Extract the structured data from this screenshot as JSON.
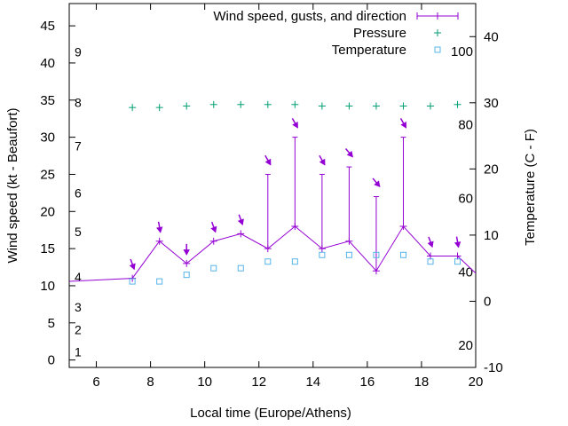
{
  "chart_data": {
    "type": "line",
    "title": "",
    "xlabel": "Local time (Europe/Athens)",
    "ylabel": "Wind speed (kt - Beaufort)",
    "y2label": "Temperature (C - F)",
    "xlim": [
      5,
      20
    ],
    "ylim": [
      -1,
      48
    ],
    "y2lim": [
      -10,
      45
    ],
    "x_ticks": [
      6,
      8,
      10,
      12,
      14,
      16,
      18,
      20
    ],
    "y_ticks": [
      0,
      5,
      10,
      15,
      20,
      25,
      30,
      35,
      40,
      45
    ],
    "y2_ticks": [
      -10,
      0,
      10,
      20,
      30,
      40
    ],
    "legend": {
      "position": "top-right",
      "entries": [
        "Wind speed, gusts, and direction",
        "Pressure",
        "Temperature"
      ]
    },
    "beaufort_scale": {
      "labels": [
        "1",
        "2",
        "3",
        "4",
        "5",
        "6",
        "7",
        "8",
        "9"
      ],
      "knots": [
        1.1,
        4.1,
        7.1,
        11.2,
        17.3,
        22.5,
        28.8,
        34.7,
        41.5
      ]
    },
    "fahrenheit_scale": {
      "labels": [
        "20",
        "40",
        "60",
        "80",
        "100"
      ],
      "values": [
        20,
        40,
        60,
        80,
        100
      ]
    },
    "series": [
      {
        "name": "Wind speed, gusts, and direction",
        "color": "#9400d3",
        "x": [
          4.5,
          7.33,
          8.33,
          9.33,
          10.33,
          11.33,
          12.33,
          13.33,
          14.33,
          15.33,
          16.33,
          17.33,
          18.33,
          19.33,
          20.2
        ],
        "y": [
          10.5,
          11,
          16,
          13,
          16,
          17,
          15,
          18,
          15,
          16,
          12,
          18,
          14,
          14,
          11
        ],
        "gusts": [
          null,
          null,
          null,
          null,
          null,
          null,
          25,
          30,
          25,
          26,
          22,
          30,
          null,
          null,
          null
        ],
        "direction_x": [
          7.33,
          8.33,
          9.33,
          10.33,
          11.33,
          12.33,
          13.33,
          14.33,
          15.33,
          16.33,
          17.33,
          18.33,
          19.33
        ],
        "direction_deg": [
          340,
          350,
          0,
          340,
          340,
          330,
          330,
          330,
          320,
          320,
          330,
          340,
          350
        ]
      },
      {
        "name": "Pressure",
        "color": "#009e73",
        "x": [
          7.33,
          8.33,
          9.33,
          10.33,
          11.33,
          12.33,
          13.33,
          14.33,
          15.33,
          16.33,
          17.33,
          18.33,
          19.33
        ],
        "y": [
          34,
          34,
          34.2,
          34.4,
          34.4,
          34.4,
          34.4,
          34.2,
          34.2,
          34.2,
          34.2,
          34.2,
          34.4
        ]
      },
      {
        "name": "Temperature",
        "color": "#56b4e9",
        "x": [
          7.33,
          8.33,
          9.33,
          10.33,
          11.33,
          12.33,
          13.33,
          14.33,
          15.33,
          16.33,
          17.33,
          18.33,
          19.33
        ],
        "y": [
          3,
          3,
          4,
          5,
          5,
          6,
          6,
          7,
          7,
          7,
          7,
          6,
          6
        ]
      }
    ]
  }
}
